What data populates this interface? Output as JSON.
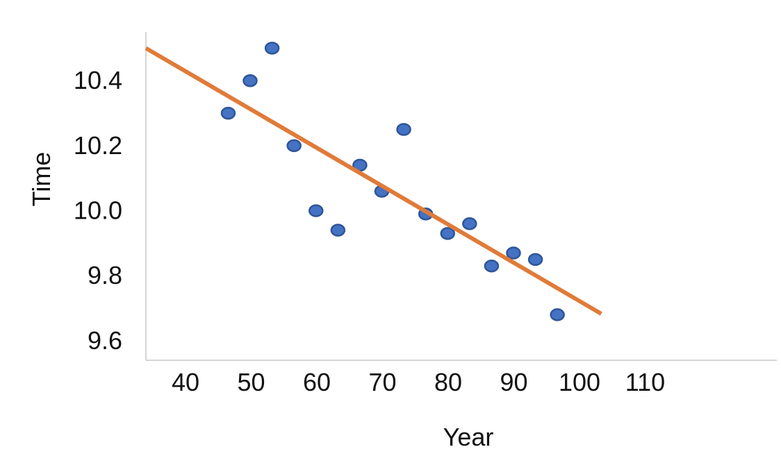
{
  "chart_data": {
    "type": "scatter",
    "title": "",
    "xlabel": "Year",
    "ylabel": "Time",
    "x_ticks": [
      "40",
      "50",
      "60",
      "70",
      "80",
      "90",
      "100",
      "110"
    ],
    "y_ticks": [
      "9.6",
      "9.8",
      "10.0",
      "10.2",
      "10.4"
    ],
    "xlim": [
      33,
      148
    ],
    "ylim": [
      9.54,
      10.55
    ],
    "grid": false,
    "legend": "none",
    "series": [
      {
        "color": "#4472C4",
        "x": [
          48,
          52,
          56,
          60,
          64,
          68,
          72,
          76,
          80,
          84,
          88,
          92,
          96,
          100,
          104,
          108
        ],
        "y": [
          10.3,
          10.4,
          10.5,
          10.2,
          10.0,
          9.94,
          10.14,
          10.06,
          10.25,
          9.99,
          9.93,
          9.96,
          9.83,
          9.87,
          9.85,
          9.68
        ]
      }
    ],
    "trendline": {
      "color": "#E07B39",
      "x": [
        33,
        116
      ],
      "y": [
        10.5,
        9.683
      ]
    },
    "axis_color": "#C8C8C8"
  }
}
